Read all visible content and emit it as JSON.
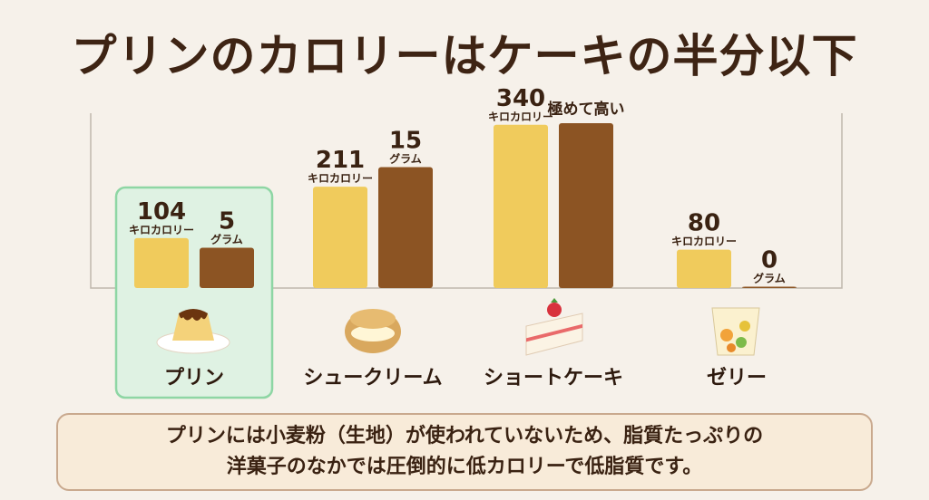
{
  "title": "プリンのカロリーはケーキの半分以下",
  "chart_data": {
    "type": "bar",
    "categories": [
      "プリン",
      "シュークリーム",
      "ショートケーキ",
      "ゼリー"
    ],
    "series": [
      {
        "key": "kcal",
        "unit": "キロカロリー",
        "values": [
          104,
          211,
          340,
          80
        ]
      },
      {
        "key": "fat",
        "unit": "グラム",
        "values": [
          5,
          15,
          null,
          0
        ]
      }
    ],
    "highlight_category": "プリン",
    "annotation": {
      "category": "ショートケーキ",
      "text": "極めて高い"
    },
    "colors": {
      "kcal": "#f0cb5c",
      "fat": "#8c5423",
      "highlight_fill": "#dff2e3",
      "highlight_border": "#8ed6a4"
    }
  },
  "icons": [
    "purin-icon",
    "cream-puff-icon",
    "shortcake-icon",
    "jelly-icon"
  ],
  "summary": {
    "line1": "プリンには小麦粉（生地）が使われていないため、脂質たっぷりの",
    "line2": "洋菓子のなかでは圧倒的に低カロリーで低脂質です。"
  }
}
